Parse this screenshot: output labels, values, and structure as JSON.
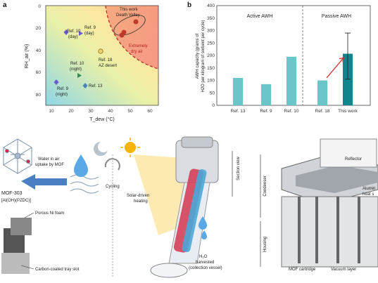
{
  "panel_a": {
    "letter": "a",
    "xlabel": "T_dew (°C)",
    "ylabel": "RH_air (%)",
    "xticks": [
      "10",
      "20",
      "30",
      "40",
      "50",
      "60"
    ],
    "yticks": [
      "0",
      "20",
      "40",
      "60",
      "80"
    ],
    "region_label": "Extremely dry air",
    "points": [
      {
        "label": "Ref. 10 (day)",
        "x": 16,
        "y": 15,
        "color": "#6a5acd",
        "shape": "diamond"
      },
      {
        "label": "Ref. 9 (day)",
        "x": 27,
        "y": 17,
        "color": "#6a5acd",
        "shape": "triangle"
      },
      {
        "label": "Ref. 18 AZ desert",
        "x": 35,
        "y": 40,
        "color": "#b8860b",
        "shape": "circle"
      },
      {
        "label": "Ref. 10 (night)",
        "x": 25,
        "y": 58,
        "color": "#2e8b57",
        "shape": "triangle"
      },
      {
        "label": "Ref. 9 (night)",
        "x": 15,
        "y": 66,
        "color": "#6a5acd",
        "shape": "diamond"
      },
      {
        "label": "Ref. 13",
        "x": 28,
        "y": 67,
        "color": "#4682b4",
        "shape": "diamond"
      },
      {
        "label": "This work Death Valley",
        "x": 48,
        "y": 18,
        "color": "#c0392b",
        "shape": "circle"
      }
    ],
    "annotations": {
      "ref10_day": "Ref. 10",
      "ref10_day2": "(day)",
      "ref9_day": "Ref. 9",
      "ref9_day2": "(day)",
      "ref18": "Ref. 18",
      "ref18_2": "AZ desert",
      "ref10_night": "Ref. 10",
      "ref10_night2": "(night)",
      "ref9_night": "Ref. 9",
      "ref9_night2": "(night)",
      "ref13": "Ref. 13",
      "this_work": "This work",
      "death_valley": "Death Valley",
      "extremely": "Extremely",
      "dry_air": "dry air"
    }
  },
  "chart_data": {
    "type": "bar",
    "categories": [
      "Ref. 13",
      "Ref. 9",
      "Ref. 10",
      "Ref. 18",
      "This work"
    ],
    "values": [
      110,
      85,
      195,
      100,
      207
    ],
    "groups": [
      "Active AWH",
      "Active AWH",
      "Active AWH",
      "Passive AWH",
      "Passive AWH"
    ],
    "ylim": [
      0,
      400
    ],
    "yticks": [
      "0",
      "50",
      "100",
      "150",
      "200",
      "250",
      "300",
      "350",
      "400"
    ],
    "ylabel_line1": "AWH capacity (grams of",
    "ylabel_line2": "H2O per kilogram of sorbent per cycle)",
    "group_labels": [
      "Active AWH",
      "Passive AWH"
    ],
    "letter": "b",
    "colors": {
      "light": "#6cc5c9",
      "dark": "#12848d"
    }
  },
  "panel_c": {
    "mof_name": "MOF-303",
    "mof_formula": "[Al(OH)(PZDC)]",
    "uptake_text_1": "Water in air",
    "uptake_text_2": "uptake by MOF",
    "cycling": "Cycling",
    "solar_1": "Solar-driven",
    "solar_2": "heating",
    "harvest_1": "H₂O",
    "harvest_2": "harvested",
    "harvest_3": "(collection vessel)",
    "foam": "Porous Ni foam",
    "tray": "Carbon-coated tray slot",
    "section_view": "Section view",
    "condenser": "Condenser",
    "housing": "Housing",
    "reflector": "Reflector",
    "aluminium": "Alumin",
    "heat_sink": "heat s",
    "cartridge": "MOF cartridge",
    "vacuum": "Vacuum layer"
  }
}
